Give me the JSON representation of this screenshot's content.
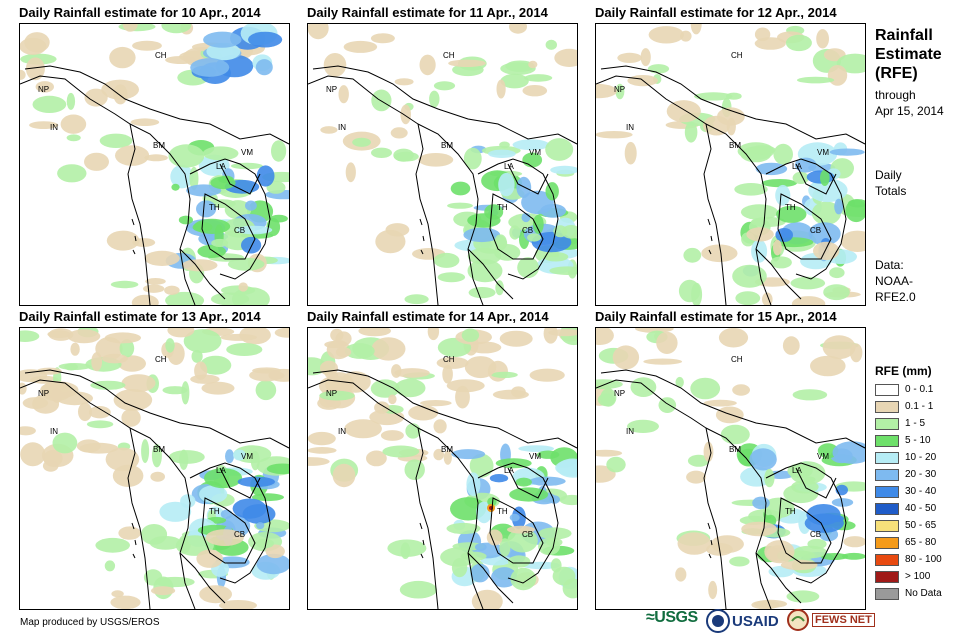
{
  "panels": [
    {
      "title": "Daily Rainfall estimate for 10 Apr., 2014",
      "seed": 10,
      "variant": "wet-east"
    },
    {
      "title": "Daily Rainfall estimate for 11 Apr., 2014",
      "seed": 11,
      "variant": "mid"
    },
    {
      "title": "Daily Rainfall estimate for 12 Apr., 2014",
      "seed": 12,
      "variant": "mid"
    },
    {
      "title": "Daily Rainfall estimate for 13 Apr., 2014",
      "seed": 13,
      "variant": "dry-north"
    },
    {
      "title": "Daily Rainfall estimate for 14 Apr., 2014",
      "seed": 14,
      "variant": "dry-north"
    },
    {
      "title": "Daily Rainfall estimate for 15 Apr., 2014",
      "seed": 15,
      "variant": "mid"
    }
  ],
  "country_labels": [
    "CH",
    "NP",
    "IN",
    "BM",
    "LA",
    "VM",
    "TH",
    "CB"
  ],
  "side": {
    "title_lines": [
      "Rainfall",
      "Estimate",
      "(RFE)"
    ],
    "through": "through",
    "date": "Apr 15, 2014",
    "daily_lines": [
      "Daily",
      "Totals"
    ],
    "data_lines": [
      "Data:",
      "NOAA-",
      "RFE2.0"
    ]
  },
  "legend": {
    "title": "RFE (mm)",
    "items": [
      {
        "label": "0 - 0.1",
        "color": "#ffffff"
      },
      {
        "label": "0.1 - 1",
        "color": "#e8d6b4"
      },
      {
        "label": "1 - 5",
        "color": "#b3f0a6"
      },
      {
        "label": "5 - 10",
        "color": "#6ee06a"
      },
      {
        "label": "10 - 20",
        "color": "#b6ecf5"
      },
      {
        "label": "20 - 30",
        "color": "#7ebaf0"
      },
      {
        "label": "30 - 40",
        "color": "#3f8ae8"
      },
      {
        "label": "40 - 50",
        "color": "#1f5cc8"
      },
      {
        "label": "50 - 65",
        "color": "#f7e07a"
      },
      {
        "label": "65 - 80",
        "color": "#f59b1a"
      },
      {
        "label": "80 - 100",
        "color": "#e84a10"
      },
      {
        "label": "> 100",
        "color": "#a01a18"
      },
      {
        "label": "No Data",
        "color": "#9a9a9a"
      }
    ]
  },
  "credit": "Map produced by USGS/EROS",
  "logos": {
    "usgs": "≈USGS",
    "usaid": "USAID",
    "fews": "FEWS NET"
  }
}
